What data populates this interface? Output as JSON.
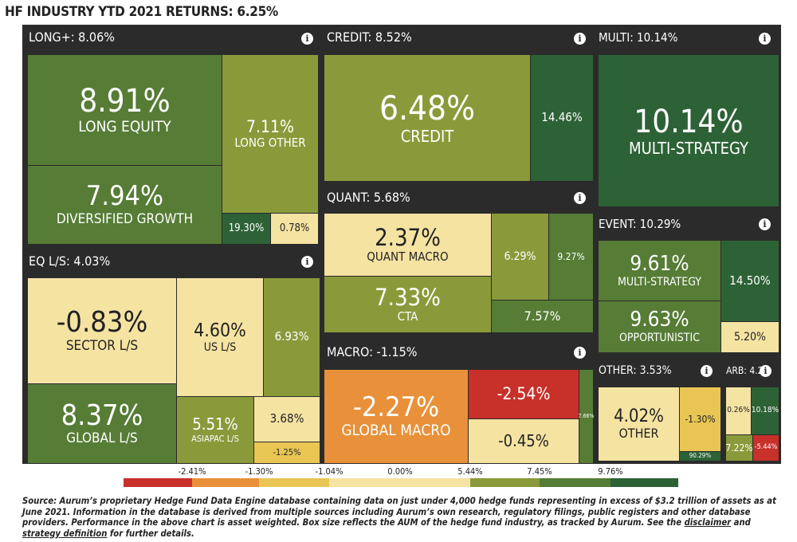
{
  "page_title": "HF INDUSTRY YTD 2021 RETURNS: 6.25%",
  "info_glyph": "i",
  "chart_data": {
    "type": "treemap",
    "title": "HF INDUSTRY YTD 2021 RETURNS: 6.25%",
    "groups": [
      {
        "header": "LONG+: 8.06%",
        "tiles": [
          {
            "value": "8.91%",
            "label": "LONG EQUITY"
          },
          {
            "value": "7.94%",
            "label": "DIVERSIFIED GROWTH"
          },
          {
            "value": "7.11%",
            "label": "LONG OTHER"
          },
          {
            "value": "19.30%",
            "label": ""
          },
          {
            "value": "0.78%",
            "label": ""
          }
        ]
      },
      {
        "header": "CREDIT: 8.52%",
        "tiles": [
          {
            "value": "6.48%",
            "label": "CREDIT"
          },
          {
            "value": "14.46%",
            "label": ""
          }
        ]
      },
      {
        "header": "MULTI: 10.14%",
        "tiles": [
          {
            "value": "10.14%",
            "label": "MULTI-STRATEGY"
          }
        ]
      },
      {
        "header": "QUANT: 5.68%",
        "tiles": [
          {
            "value": "2.37%",
            "label": "QUANT MACRO"
          },
          {
            "value": "7.33%",
            "label": "CTA"
          },
          {
            "value": "6.29%",
            "label": ""
          },
          {
            "value": "9.27%",
            "label": ""
          },
          {
            "value": "7.57%",
            "label": ""
          }
        ]
      },
      {
        "header": "EVENT: 10.29%",
        "tiles": [
          {
            "value": "9.61%",
            "label": "MULTI-STRATEGY"
          },
          {
            "value": "9.63%",
            "label": "OPPORTUNISTIC"
          },
          {
            "value": "14.50%",
            "label": ""
          },
          {
            "value": "5.20%",
            "label": ""
          }
        ]
      },
      {
        "header": "EQ L/S: 4.03%",
        "tiles": [
          {
            "value": "-0.83%",
            "label": "SECTOR L/S"
          },
          {
            "value": "4.60%",
            "label": "US L/S"
          },
          {
            "value": "6.93%",
            "label": ""
          },
          {
            "value": "8.37%",
            "label": "GLOBAL L/S"
          },
          {
            "value": "5.51%",
            "label": "ASIAPAC L/S"
          },
          {
            "value": "3.68%",
            "label": ""
          },
          {
            "value": "-1.25%",
            "label": ""
          }
        ]
      },
      {
        "header": "MACRO: -1.15%",
        "tiles": [
          {
            "value": "-2.27%",
            "label": "GLOBAL MACRO"
          },
          {
            "value": "-2.54%",
            "label": ""
          },
          {
            "value": "-0.45%",
            "label": ""
          },
          {
            "value": "7.66%",
            "label": ""
          }
        ]
      },
      {
        "header": "OTHER: 3.53%",
        "tiles": [
          {
            "value": "4.02%",
            "label": "OTHER"
          },
          {
            "value": "-1.30%",
            "label": ""
          },
          {
            "value": "90.29%",
            "label": ""
          }
        ]
      },
      {
        "header": "ARB: 4.2",
        "tiles": [
          {
            "value": "0.26%",
            "label": ""
          },
          {
            "value": "10.18%",
            "label": ""
          },
          {
            "value": "7.22%",
            "label": ""
          },
          {
            "value": "-5.44%",
            "label": ""
          }
        ]
      }
    ],
    "legend": {
      "labels": [
        "-2.41%",
        "-1.30%",
        "-1.04%",
        "0.00%",
        "5.44%",
        "7.45%",
        "9.76%"
      ],
      "colors": [
        "#c8302a",
        "#e8913a",
        "#e9c654",
        "#f5e3a2",
        "#8a9a3a",
        "#567c35",
        "#2d6236"
      ]
    }
  },
  "source": {
    "text": "Source: Aurum’s proprietary Hedge Fund Data Engine database containing data on just under 4,000 hedge funds representing in excess of $3.2 trillion of assets as at June 2021. Information in the database is derived from multiple sources including Aurum’s own research, regulatory filings, public registers and other database providers. Performance in the above chart is asset weighted. Box size reflects the AUM of the hedge fund industry, as tracked by Aurum. See the",
    "link1": "disclaimer",
    "mid": "and",
    "link2": "strategy definition",
    "tail": "for further details."
  }
}
